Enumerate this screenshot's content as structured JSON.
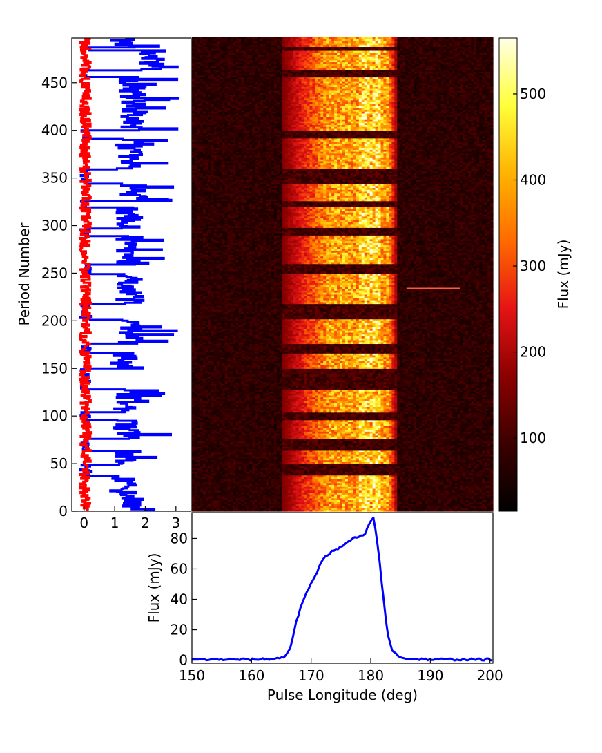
{
  "colors": {
    "on_series": "#0000ff",
    "off_series": "#ff0000",
    "profile": "#0000ff",
    "colormap": [
      "#000000",
      "#3c0000",
      "#8c0000",
      "#e61414",
      "#ff6a00",
      "#ffb300",
      "#ffff3a",
      "#ffffe6"
    ]
  },
  "chart_data": [
    {
      "type": "line",
      "panel": "left",
      "xlabel": "",
      "ylabel": "Period Number",
      "xlim": [
        -0.4,
        3.5
      ],
      "ylim": [
        0,
        497
      ],
      "xticks": [
        "0",
        "1",
        "2",
        "3"
      ],
      "yticks": [
        "0",
        "50",
        "100",
        "150",
        "200",
        "250",
        "300",
        "350",
        "400",
        "450"
      ],
      "grid": false,
      "step_profile": "blue",
      "on_blocks": [
        {
          "start": 0,
          "end": 2,
          "level": 1.85
        },
        {
          "start": 3,
          "end": 13,
          "level": 1.5
        },
        {
          "start": 14,
          "end": 36,
          "level": 1.3
        },
        {
          "start": 49,
          "end": 62,
          "level": 1.4
        },
        {
          "start": 76,
          "end": 95,
          "level": 1.4
        },
        {
          "start": 104,
          "end": 127,
          "level": 1.4
        },
        {
          "start": 150,
          "end": 165,
          "level": 1.3
        },
        {
          "start": 176,
          "end": 200,
          "level": 1.5
        },
        {
          "start": 218,
          "end": 248,
          "level": 1.5
        },
        {
          "start": 259,
          "end": 288,
          "level": 1.5
        },
        {
          "start": 297,
          "end": 318,
          "level": 1.5
        },
        {
          "start": 326,
          "end": 343,
          "level": 1.6
        },
        {
          "start": 359,
          "end": 390,
          "level": 1.5
        },
        {
          "start": 400,
          "end": 455,
          "level": 1.6
        },
        {
          "start": 463,
          "end": 483,
          "level": 2.2
        },
        {
          "start": 487,
          "end": 496,
          "level": 1.3
        }
      ],
      "series": [
        {
          "name": "",
          "color": "blue"
        },
        {
          "name": "",
          "color": "red"
        }
      ]
    },
    {
      "type": "heatmap",
      "panel": "main",
      "xlim": [
        150,
        200.5
      ],
      "ylim": [
        0,
        497
      ],
      "window_deg": [
        165,
        184
      ],
      "peak_longitude": 180.5,
      "rfi_line": {
        "period": 234,
        "x_start": 186,
        "x_end": 195
      },
      "colorbar": {
        "label": "Flux (mJy)",
        "ticks": [
          "100",
          "200",
          "300",
          "400",
          "500"
        ],
        "range": [
          15,
          565
        ]
      }
    },
    {
      "type": "line",
      "panel": "bottom",
      "xlabel": "Pulse Longitude (deg)",
      "ylabel": "Flux (mJy)",
      "xlim": [
        150,
        200.5
      ],
      "ylim": [
        -2,
        97
      ],
      "xticks": [
        "150",
        "160",
        "170",
        "180",
        "190",
        "200"
      ],
      "yticks": [
        "0",
        "20",
        "40",
        "60",
        "80"
      ],
      "grid": false,
      "series": [
        {
          "name": "",
          "color": "blue",
          "x": [
            150,
            160,
            164,
            165.5,
            166.5,
            167.5,
            168.5,
            170,
            171,
            172,
            173,
            174,
            175,
            176,
            177,
            178,
            179,
            179.8,
            180.5,
            181.2,
            182,
            182.8,
            183.5,
            184.5,
            186,
            190,
            200.5
          ],
          "y": [
            0.5,
            0.5,
            1,
            2,
            8,
            25,
            38,
            50,
            58,
            67,
            70,
            73,
            74,
            77,
            80,
            81,
            82,
            90,
            94,
            75,
            45,
            18,
            7,
            3,
            1,
            0.5,
            0.5
          ]
        }
      ]
    }
  ]
}
